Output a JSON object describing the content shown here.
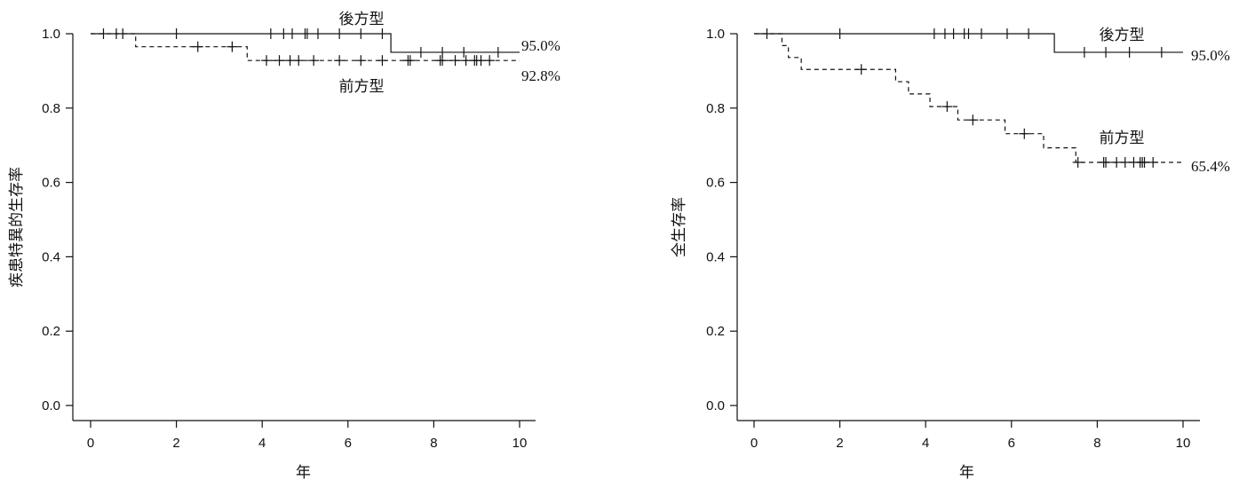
{
  "chart_data": [
    {
      "type": "line",
      "subtype": "kaplan-meier",
      "title": "",
      "xlabel": "年",
      "ylabel": "疾患特異的生存率",
      "xlim": [
        0,
        10
      ],
      "ylim": [
        0,
        1
      ],
      "xticks": [
        "0",
        "2",
        "4",
        "6",
        "8",
        "10"
      ],
      "yticks": [
        "0.0",
        "0.2",
        "0.4",
        "0.6",
        "0.8",
        "1.0"
      ],
      "grid": false,
      "series": [
        {
          "name": "後方型",
          "line_style": "solid",
          "end_label": "95.0%",
          "steps": [
            [
              0,
              1.0
            ],
            [
              7.0,
              0.95
            ],
            [
              10.0,
              0.95
            ]
          ],
          "censor_times": [
            0.3,
            0.6,
            0.75,
            2.0,
            4.2,
            4.5,
            4.7,
            5.0,
            5.05,
            5.3,
            5.8,
            6.3,
            6.8,
            7.7,
            8.2,
            8.7,
            9.5
          ]
        },
        {
          "name": "前方型",
          "line_style": "dashed",
          "end_label": "92.8%",
          "steps": [
            [
              0,
              1.0
            ],
            [
              1.05,
              0.965
            ],
            [
              3.65,
              0.928
            ],
            [
              10.0,
              0.928
            ]
          ],
          "censor_times": [
            2.5,
            3.3,
            4.1,
            4.4,
            4.65,
            4.85,
            5.2,
            5.8,
            6.3,
            6.8,
            7.4,
            7.45,
            8.15,
            8.2,
            8.5,
            8.75,
            8.95,
            9.0,
            9.1,
            9.3
          ]
        }
      ],
      "annotations": [
        {
          "text": "後方型",
          "series": "後方型"
        },
        {
          "text": "前方型",
          "series": "前方型"
        }
      ]
    },
    {
      "type": "line",
      "subtype": "kaplan-meier",
      "title": "",
      "xlabel": "年",
      "ylabel": "全生存率",
      "xlim": [
        0,
        10
      ],
      "ylim": [
        0,
        1
      ],
      "xticks": [
        "0",
        "2",
        "4",
        "6",
        "8",
        "10"
      ],
      "yticks": [
        "0.0",
        "0.2",
        "0.4",
        "0.6",
        "0.8",
        "1.0"
      ],
      "grid": false,
      "series": [
        {
          "name": "後方型",
          "line_style": "solid",
          "end_label": "95.0%",
          "steps": [
            [
              0,
              1.0
            ],
            [
              7.0,
              0.95
            ],
            [
              10.0,
              0.95
            ]
          ],
          "censor_times": [
            0.3,
            2.0,
            4.2,
            4.45,
            4.65,
            4.9,
            5.0,
            5.3,
            5.9,
            6.4,
            7.7,
            8.2,
            8.75,
            9.5
          ]
        },
        {
          "name": "前方型",
          "line_style": "dashed",
          "end_label": "65.4%",
          "steps": [
            [
              0,
              1.0
            ],
            [
              0.65,
              0.968
            ],
            [
              0.8,
              0.936
            ],
            [
              1.1,
              0.904
            ],
            [
              3.3,
              0.871
            ],
            [
              3.6,
              0.838
            ],
            [
              4.1,
              0.804
            ],
            [
              4.75,
              0.768
            ],
            [
              5.85,
              0.731
            ],
            [
              6.75,
              0.693
            ],
            [
              7.5,
              0.654
            ],
            [
              10.0,
              0.654
            ]
          ],
          "censor_times": [
            2.5,
            4.5,
            5.1,
            6.3,
            7.55,
            8.15,
            8.2,
            8.45,
            8.65,
            8.85,
            9.0,
            9.05,
            9.1,
            9.3
          ]
        }
      ],
      "annotations": [
        {
          "text": "後方型",
          "series": "後方型"
        },
        {
          "text": "前方型",
          "series": "前方型"
        }
      ]
    }
  ]
}
